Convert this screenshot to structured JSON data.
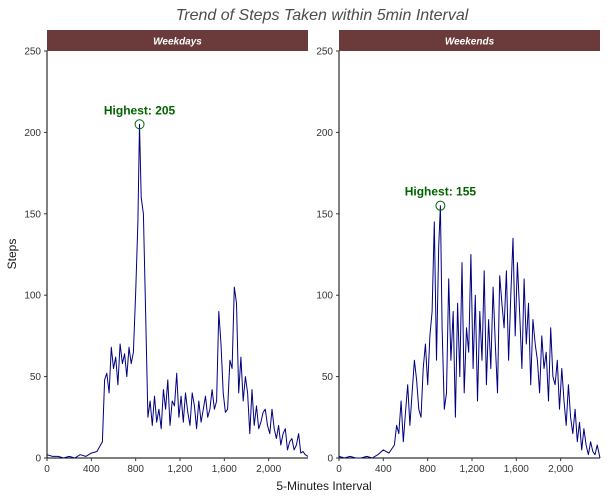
{
  "chart_data": {
    "type": "line",
    "title": "Trend of Steps Taken within 5min Interval",
    "xlabel": "5-Minutes Interval",
    "ylabel": "Steps",
    "xlim": [
      0,
      2355
    ],
    "ylim": [
      0,
      250
    ],
    "x_ticks": [
      0,
      400,
      800,
      1200,
      1600,
      2000
    ],
    "x_tick_labels": [
      "0",
      "400",
      "800",
      "1,200",
      "1,600",
      "2,000"
    ],
    "y_ticks": [
      0,
      50,
      100,
      150,
      200,
      250
    ],
    "y_tick_labels": [
      "0",
      "50",
      "100",
      "150",
      "200",
      "250"
    ],
    "grid": false,
    "line_color": "#000080",
    "strip_color": "#6b3a3a",
    "annotation_color": "#006400",
    "panels": [
      {
        "strip_label": "Weekdays",
        "annotation": "Highest: 205",
        "peak": {
          "x": 835,
          "y": 205
        },
        "series": [
          {
            "x": [
              0,
              50,
              100,
              150,
              200,
              250,
              300,
              350,
              400,
              450,
              500,
              520,
              540,
              560,
              580,
              600,
              620,
              640,
              660,
              680,
              700,
              720,
              740,
              760,
              780,
              800,
              820,
              835,
              850,
              870,
              890,
              910,
              930,
              950,
              970,
              990,
              1010,
              1030,
              1050,
              1070,
              1090,
              1110,
              1130,
              1150,
              1170,
              1190,
              1210,
              1230,
              1250,
              1270,
              1290,
              1310,
              1330,
              1350,
              1370,
              1390,
              1410,
              1430,
              1450,
              1470,
              1490,
              1510,
              1530,
              1550,
              1570,
              1590,
              1610,
              1630,
              1650,
              1670,
              1690,
              1710,
              1730,
              1750,
              1770,
              1790,
              1810,
              1830,
              1850,
              1870,
              1890,
              1910,
              1930,
              1950,
              1970,
              1990,
              2010,
              2030,
              2050,
              2070,
              2090,
              2110,
              2130,
              2150,
              2170,
              2190,
              2210,
              2230,
              2250,
              2270,
              2290,
              2310,
              2330,
              2355
            ],
            "y": [
              2,
              1,
              1,
              0,
              1,
              0,
              2,
              1,
              3,
              4,
              10,
              48,
              52,
              40,
              68,
              55,
              62,
              45,
              70,
              58,
              64,
              50,
              68,
              58,
              65,
              102,
              145,
              205,
              160,
              150,
              90,
              25,
              35,
              20,
              38,
              22,
              30,
              18,
              42,
              30,
              48,
              20,
              35,
              32,
              52,
              25,
              38,
              22,
              40,
              28,
              20,
              40,
              32,
              18,
              35,
              22,
              30,
              38,
              25,
              30,
              42,
              30,
              35,
              90,
              70,
              40,
              28,
              30,
              60,
              55,
              105,
              95,
              40,
              62,
              35,
              50,
              40,
              15,
              42,
              20,
              32,
              18,
              22,
              28,
              30,
              20,
              15,
              30,
              18,
              12,
              20,
              8,
              15,
              18,
              5,
              10,
              12,
              5,
              8,
              15,
              3,
              4,
              2,
              1
            ]
          }
        ]
      },
      {
        "strip_label": "Weekends",
        "annotation": "Highest: 155",
        "peak": {
          "x": 915,
          "y": 155
        },
        "series": [
          {
            "x": [
              0,
              50,
              100,
              150,
              200,
              250,
              300,
              350,
              400,
              450,
              500,
              520,
              540,
              560,
              580,
              600,
              620,
              640,
              660,
              680,
              700,
              720,
              740,
              760,
              780,
              800,
              820,
              840,
              860,
              880,
              900,
              915,
              930,
              950,
              970,
              990,
              1010,
              1030,
              1050,
              1070,
              1090,
              1110,
              1130,
              1150,
              1170,
              1190,
              1210,
              1230,
              1250,
              1270,
              1290,
              1310,
              1330,
              1350,
              1370,
              1390,
              1410,
              1430,
              1450,
              1470,
              1490,
              1510,
              1530,
              1550,
              1570,
              1590,
              1610,
              1630,
              1650,
              1670,
              1690,
              1710,
              1730,
              1750,
              1770,
              1790,
              1810,
              1830,
              1850,
              1870,
              1890,
              1910,
              1930,
              1950,
              1970,
              1990,
              2010,
              2030,
              2050,
              2070,
              2090,
              2110,
              2130,
              2150,
              2170,
              2190,
              2210,
              2230,
              2250,
              2270,
              2290,
              2310,
              2330,
              2355
            ],
            "y": [
              1,
              0,
              1,
              0,
              0,
              1,
              0,
              2,
              5,
              3,
              8,
              20,
              15,
              35,
              10,
              28,
              45,
              20,
              40,
              60,
              48,
              30,
              25,
              55,
              70,
              45,
              75,
              90,
              145,
              60,
              130,
              155,
              80,
              30,
              40,
              110,
              60,
              90,
              25,
              95,
              50,
              120,
              40,
              80,
              65,
              125,
              55,
              100,
              35,
              90,
              60,
              115,
              45,
              85,
              55,
              105,
              70,
              40,
              112,
              95,
              80,
              115,
              60,
              100,
              135,
              75,
              120,
              90,
              55,
              110,
              70,
              95,
              45,
              85,
              70,
              60,
              40,
              75,
              55,
              65,
              35,
              80,
              50,
              45,
              60,
              30,
              55,
              35,
              20,
              45,
              25,
              15,
              30,
              10,
              22,
              5,
              18,
              8,
              2,
              10,
              4,
              2,
              8,
              0
            ]
          }
        ]
      }
    ]
  }
}
